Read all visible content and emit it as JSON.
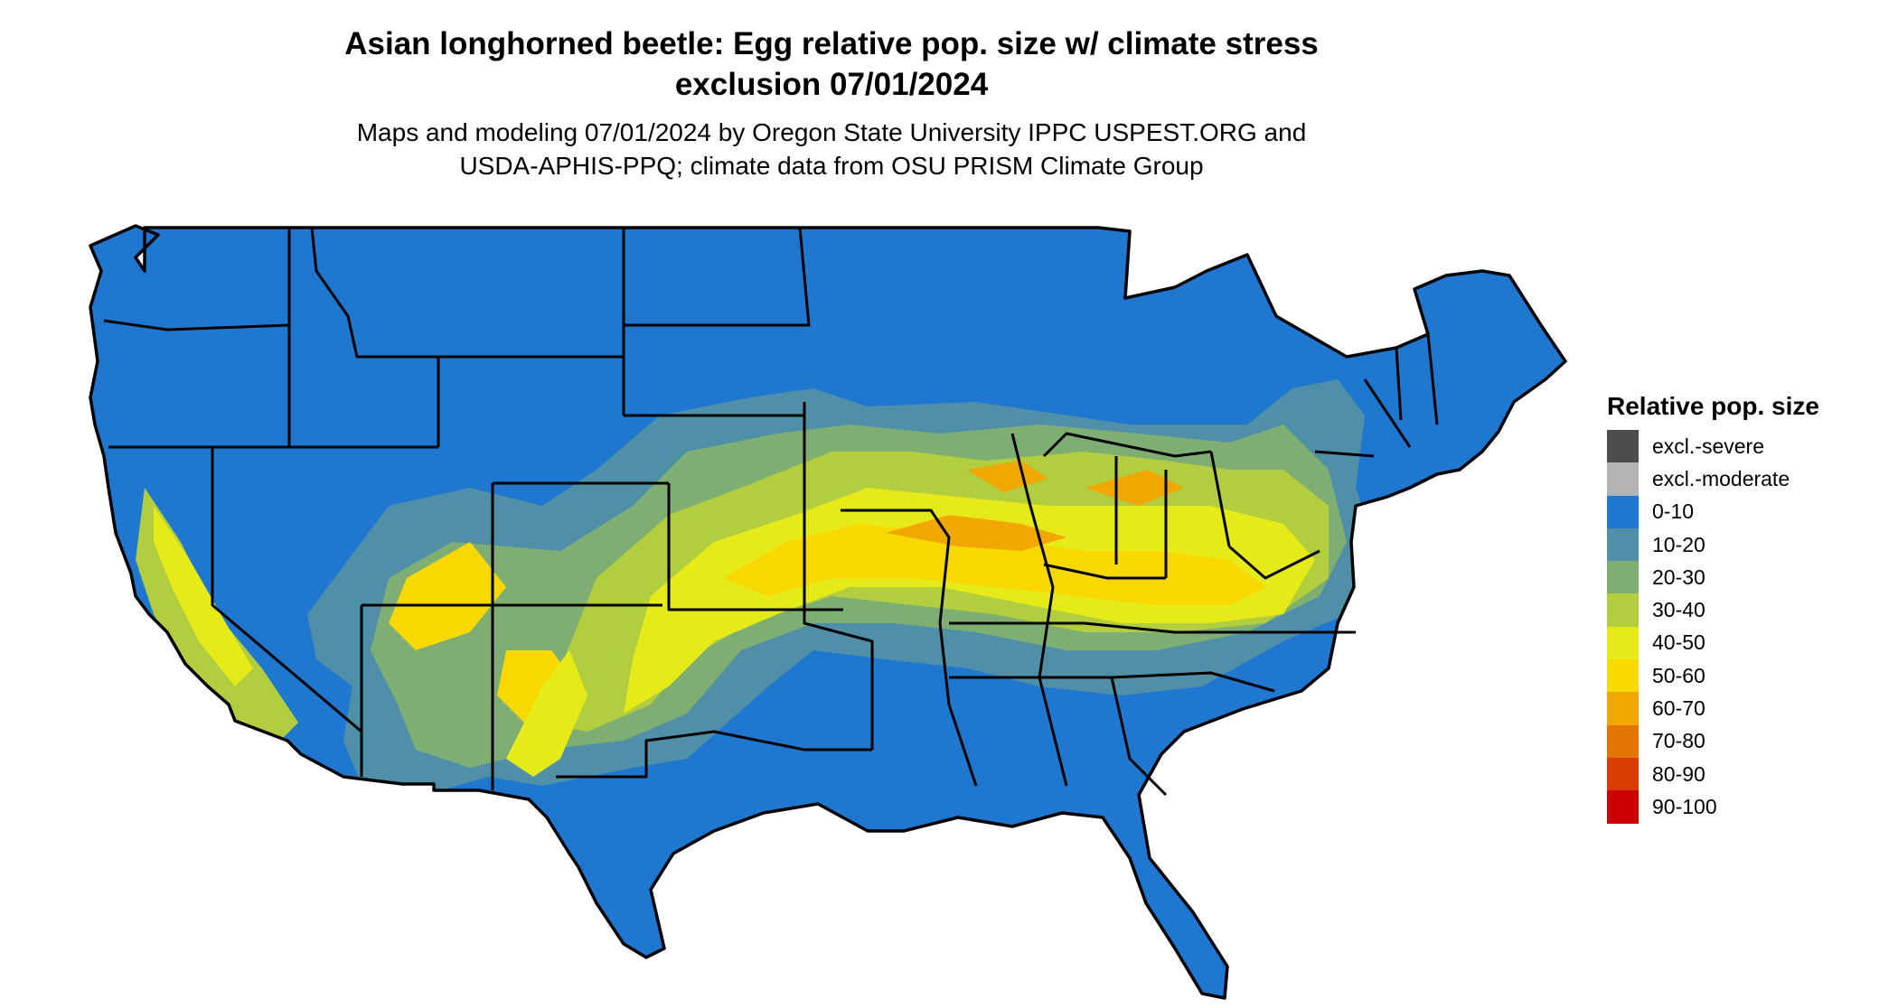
{
  "title_line1": "Asian longhorned beetle: Egg relative pop. size w/ climate stress",
  "title_line2": "exclusion 07/01/2024",
  "subtitle_line1": "Maps and modeling 07/01/2024 by Oregon State University IPPC USPEST.ORG and",
  "subtitle_line2": "USDA-APHIS-PPQ; climate data from OSU PRISM Climate Group",
  "legend": {
    "title": "Relative pop. size",
    "items": [
      {
        "label": "excl.-severe",
        "color": "#4d4d4d"
      },
      {
        "label": "excl.-moderate",
        "color": "#b3b3b3"
      },
      {
        "label": "0-10",
        "color": "#1f77d0"
      },
      {
        "label": "10-20",
        "color": "#4f90a8"
      },
      {
        "label": "20-30",
        "color": "#7fae73"
      },
      {
        "label": "30-40",
        "color": "#b2cd3e"
      },
      {
        "label": "40-50",
        "color": "#e6ea19"
      },
      {
        "label": "50-60",
        "color": "#f9d800"
      },
      {
        "label": "60-70",
        "color": "#f0a800"
      },
      {
        "label": "70-80",
        "color": "#e47400"
      },
      {
        "label": "80-90",
        "color": "#d93b00"
      },
      {
        "label": "90-100",
        "color": "#cc0000"
      }
    ]
  }
}
